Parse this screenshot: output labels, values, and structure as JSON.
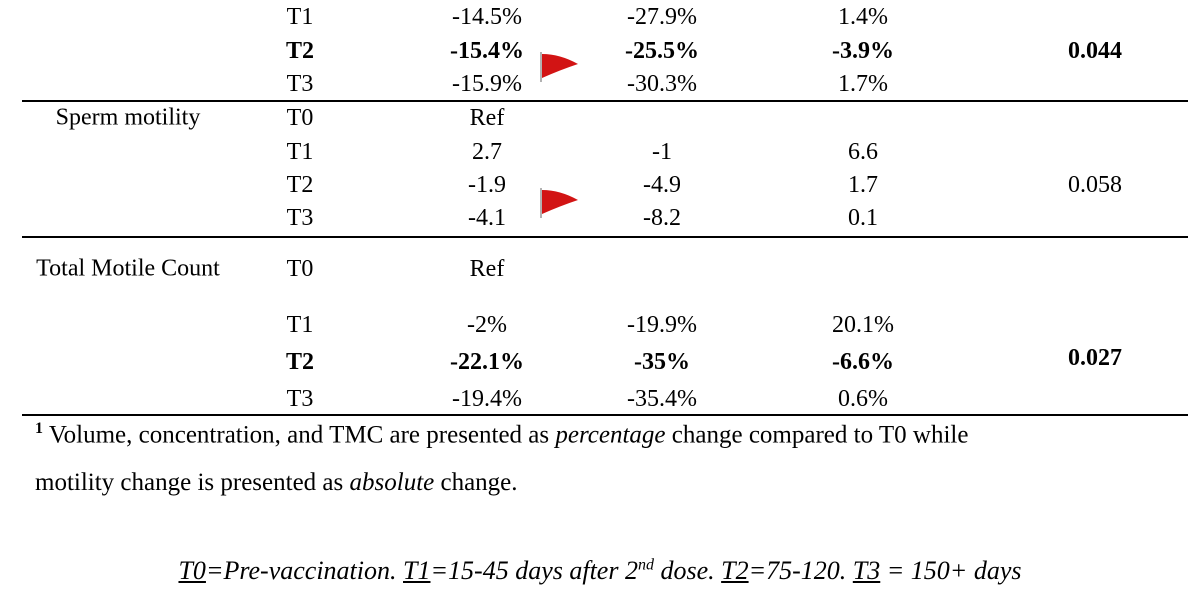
{
  "table": {
    "groups": [
      {
        "rows": [
          {
            "time": "T1",
            "estimate": "-14.5%",
            "lower": "-27.9%",
            "upper": "1.4%"
          },
          {
            "time": "T2",
            "estimate": "-15.4%",
            "lower": "-25.5%",
            "upper": "-3.9%"
          },
          {
            "time": "T3",
            "estimate": "-15.9%",
            "lower": "-30.3%",
            "upper": "1.7%"
          }
        ],
        "p_value": "0.044",
        "bold_row": 1
      },
      {
        "name": "Sperm motility",
        "rows": [
          {
            "time": "T0",
            "estimate": "Ref"
          },
          {
            "time": "T1",
            "estimate": "2.7",
            "lower": "-1",
            "upper": "6.6"
          },
          {
            "time": "T2",
            "estimate": "-1.9",
            "lower": "-4.9",
            "upper": "1.7"
          },
          {
            "time": "T3",
            "estimate": "-4.1",
            "lower": "-8.2",
            "upper": "0.1"
          }
        ],
        "p_value": "0.058"
      },
      {
        "name": "Total Motile Count",
        "rows": [
          {
            "time": "T0",
            "estimate": "Ref"
          },
          {
            "time": "T1",
            "estimate": "-2%",
            "lower": "-19.9%",
            "upper": "20.1%"
          },
          {
            "time": "T2",
            "estimate": "-22.1%",
            "lower": "-35%",
            "upper": "-6.6%"
          },
          {
            "time": "T3",
            "estimate": "-19.4%",
            "lower": "-35.4%",
            "upper": "0.6%"
          }
        ],
        "p_value": "0.027",
        "bold_row": 2
      }
    ]
  },
  "footnote": {
    "marker": "1",
    "text1": "Volume, concentration, and TMC are presented as ",
    "em1": "percentage",
    "text2": " change compared to T0 while",
    "text3": "motility change is presented as ",
    "em2": "absolute",
    "text4": " change."
  },
  "legend": {
    "t0": "T0",
    "t0_def": "=Pre-vaccination. ",
    "t1": "T1",
    "t1_def": "=15-45 days after 2",
    "t1_sup": "nd",
    "t1_rest": " dose. ",
    "t2": "T2",
    "t2_def": "=75-120. ",
    "t3": "T3",
    "t3_def": " = 150+ days"
  }
}
